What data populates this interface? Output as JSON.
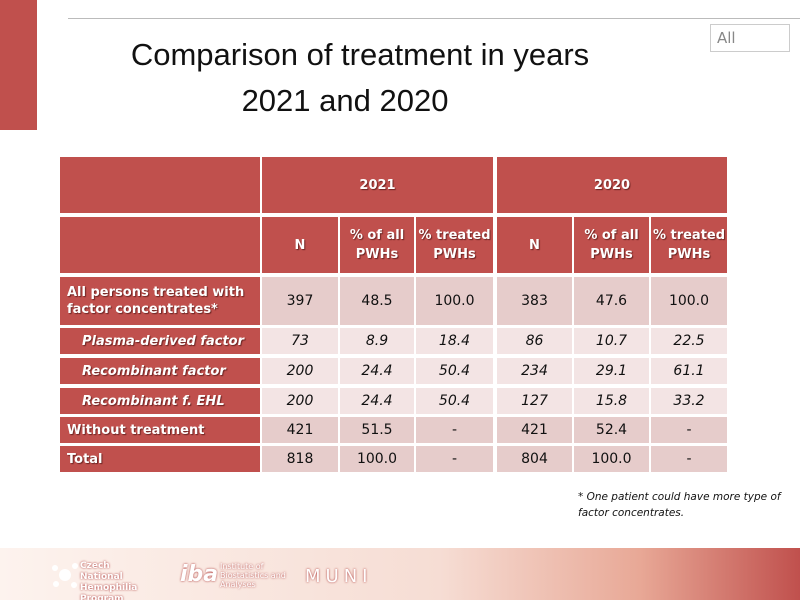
{
  "filter": "All",
  "title": [
    "Comparison of treatment in years",
    "2021 and 2020"
  ],
  "table": {
    "groups": [
      "2021",
      "2020"
    ],
    "columns": [
      "N",
      "% of all PWHs",
      "% treated PWHs",
      "N",
      "% of all PWHs",
      "% treated PWHs"
    ],
    "rows": [
      {
        "label": "All persons treated with factor concentrates*",
        "cells": [
          "397",
          "48.5",
          "100.0",
          "383",
          "47.6",
          "100.0"
        ]
      },
      {
        "label": "Plasma-derived factor",
        "cells": [
          "73",
          "8.9",
          "18.4",
          "86",
          "10.7",
          "22.5"
        ]
      },
      {
        "label": "Recombinant factor",
        "cells": [
          "200",
          "24.4",
          "50.4",
          "234",
          "29.1",
          "61.1"
        ]
      },
      {
        "label": "Recombinant f. EHL",
        "cells": [
          "200",
          "24.4",
          "50.4",
          "127",
          "15.8",
          "33.2"
        ]
      },
      {
        "label": "Without treatment",
        "cells": [
          "421",
          "51.5",
          "-",
          "421",
          "52.4",
          "-"
        ]
      },
      {
        "label": "Total",
        "cells": [
          "818",
          "100.0",
          "-",
          "804",
          "100.0",
          "-"
        ]
      }
    ]
  },
  "footnote": "* One patient could have more type of factor concentrates.",
  "footer": {
    "program": "Czech National Hemophilia Program",
    "iba": "iba",
    "institute": "Institute of Biostatistics and Analyses",
    "muni": "MUNI"
  }
}
